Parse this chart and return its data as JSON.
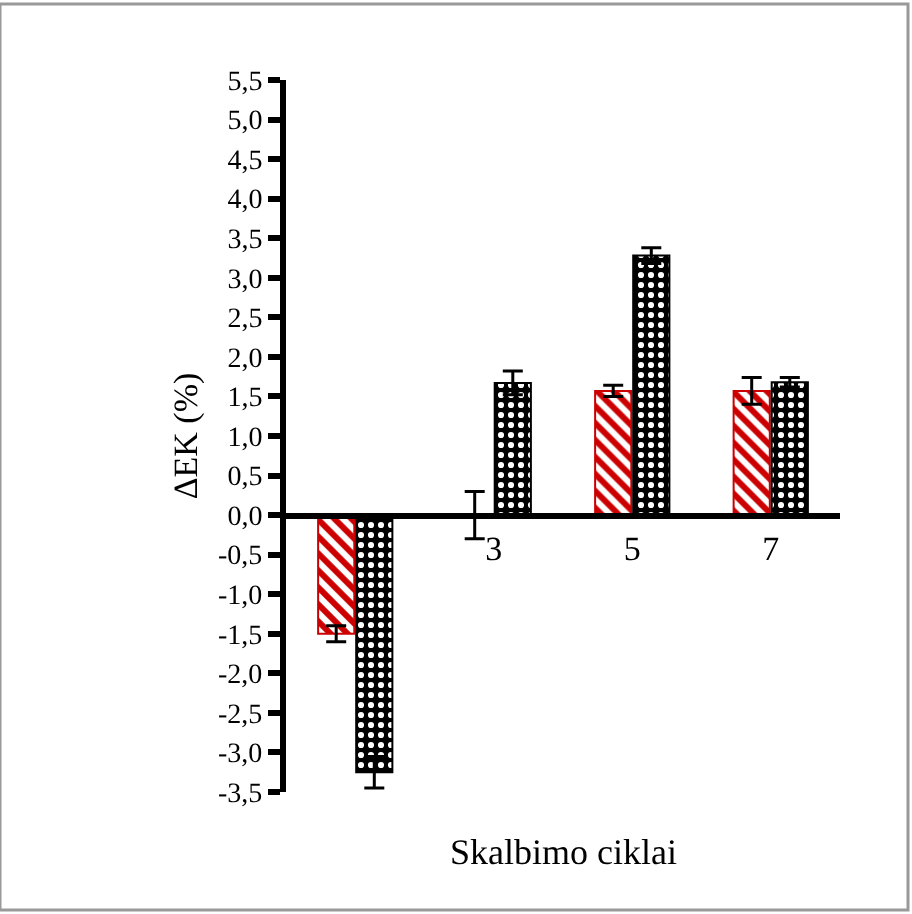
{
  "chart_data": {
    "type": "bar",
    "xlabel": "Skalbimo ciklai",
    "ylabel": "ΔEK (%)",
    "categories": [
      null,
      "3",
      "5",
      "7"
    ],
    "series": [
      {
        "color": "#cc0000",
        "values": [
          -1.5,
          0,
          1.57,
          1.57
        ],
        "errors": [
          0.1,
          0.3,
          0.07,
          0.17
        ]
      },
      {
        "color": "#000000",
        "values": [
          -3.25,
          1.67,
          3.28,
          1.68
        ],
        "errors": [
          0.2,
          0.15,
          0.1,
          0.06
        ]
      }
    ],
    "ylim": [
      -3.5,
      5.5
    ],
    "yticks": [
      {
        "value": 5.5,
        "label": "5,5"
      },
      {
        "value": 5.0,
        "label": "5,0"
      },
      {
        "value": 4.5,
        "label": "4,5"
      },
      {
        "value": 4.0,
        "label": "4,0"
      },
      {
        "value": 3.5,
        "label": "3,5"
      },
      {
        "value": 3.0,
        "label": "3,0"
      },
      {
        "value": 2.5,
        "label": "2,5"
      },
      {
        "value": 2.0,
        "label": "2,0"
      },
      {
        "value": 1.5,
        "label": "1,5"
      },
      {
        "value": 1.0,
        "label": "1,0"
      },
      {
        "value": 0.5,
        "label": "0,5"
      },
      {
        "value": 0,
        "label": "0,0"
      },
      {
        "value": -0.5,
        "label": "-0,5"
      },
      {
        "value": -1.0,
        "label": "-1,0"
      },
      {
        "value": -1.5,
        "label": "-1,5"
      },
      {
        "value": -2.0,
        "label": "-2,0"
      },
      {
        "value": -2.5,
        "label": "-2,5"
      },
      {
        "value": -3.0,
        "label": "-3,0"
      },
      {
        "value": -3.5,
        "label": "-3,5"
      }
    ]
  }
}
